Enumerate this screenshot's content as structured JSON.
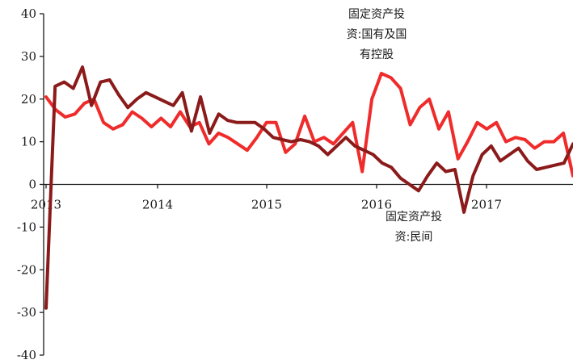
{
  "chart_data": {
    "type": "line",
    "title": "",
    "xlabel": "",
    "ylabel": "",
    "ylim": [
      -40,
      40
    ],
    "yticks": [
      40,
      30,
      20,
      10,
      0,
      -10,
      -20,
      -30,
      -40
    ],
    "xticks": [
      "2013",
      "2014",
      "2015",
      "2016",
      "2017"
    ],
    "grid": false,
    "legend": "none",
    "annotations": [
      {
        "lines": [
          "固定资产投",
          "资:国有及国",
          "有控股"
        ],
        "series": "state"
      },
      {
        "lines": [
          "固定资产投",
          "资:民间"
        ],
        "series": "private"
      }
    ],
    "series": [
      {
        "key": "state",
        "color": "#ef2b2b",
        "values": [
          20.5,
          17.5,
          15.8,
          16.5,
          19,
          20,
          14.5,
          13,
          14,
          17,
          15.5,
          13.5,
          15.5,
          13.5,
          17,
          13.5,
          14.5,
          9.5,
          12,
          11,
          9.5,
          8,
          11,
          14.5,
          14.5,
          7.5,
          9.5,
          16,
          10,
          11,
          9.5,
          12,
          14.5,
          3,
          20,
          26,
          25,
          22.5,
          14,
          18,
          20,
          13,
          17,
          6,
          10,
          14.5,
          13,
          14.5,
          10,
          11,
          10.5,
          8.5,
          10,
          10,
          12,
          2
        ]
      },
      {
        "key": "private",
        "color": "#8b1a1a",
        "values": [
          -29,
          23,
          24,
          22.5,
          27.5,
          18.5,
          24,
          24.5,
          21,
          18,
          20,
          21.5,
          20.5,
          19.5,
          18.5,
          21.5,
          12.5,
          20.5,
          12,
          16.5,
          15,
          14.5,
          14.5,
          14.5,
          13,
          11,
          10.5,
          10,
          10.5,
          10,
          9,
          7,
          9,
          11,
          9,
          8,
          7,
          5,
          4,
          1.5,
          0,
          -1.5,
          2,
          5,
          3,
          3.5,
          -6.5,
          2,
          7,
          9,
          5.5,
          7,
          8.5,
          5.5,
          3.5,
          4,
          4.5,
          5,
          9.5
        ]
      }
    ]
  }
}
